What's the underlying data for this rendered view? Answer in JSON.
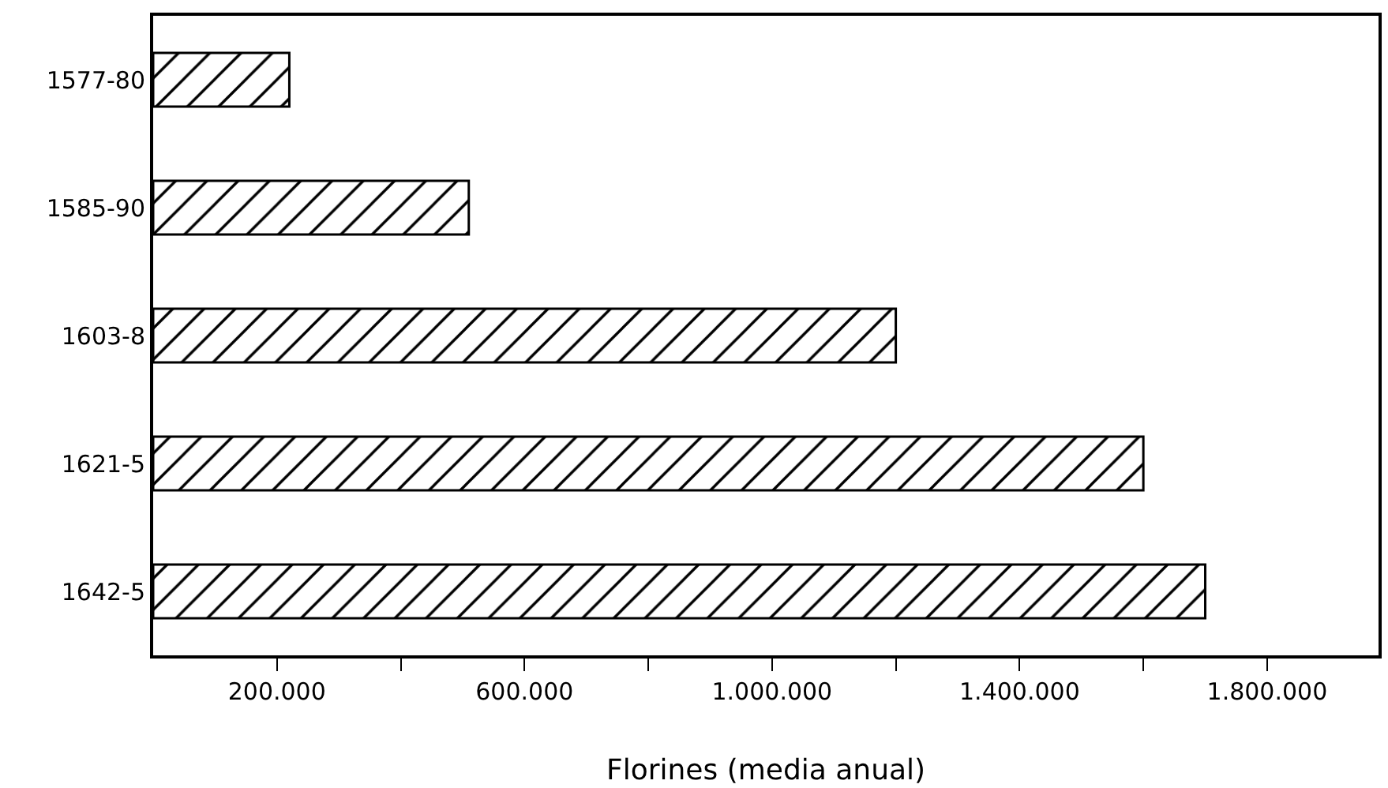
{
  "chart_data": {
    "type": "bar",
    "orientation": "horizontal",
    "xlabel": "Florines (media anual)",
    "categories": [
      "1577-80",
      "1585-90",
      "1603-8",
      "1621-5",
      "1642-5"
    ],
    "values": [
      220000,
      510000,
      1200000,
      1600000,
      1700000
    ],
    "color": "#000000",
    "xlim": [
      0,
      1980000
    ],
    "xticks": [
      {
        "value": 200000,
        "label": "200.000"
      },
      {
        "value": 400000,
        "label": null
      },
      {
        "value": 600000,
        "label": "600.000"
      },
      {
        "value": 800000,
        "label": null
      },
      {
        "value": 1000000,
        "label": "1.000.000"
      },
      {
        "value": 1200000,
        "label": null
      },
      {
        "value": 1400000,
        "label": "1.400.000"
      },
      {
        "value": 1600000,
        "label": null
      },
      {
        "value": 1800000,
        "label": "1.800.000"
      }
    ],
    "grid": false,
    "legend": false
  }
}
